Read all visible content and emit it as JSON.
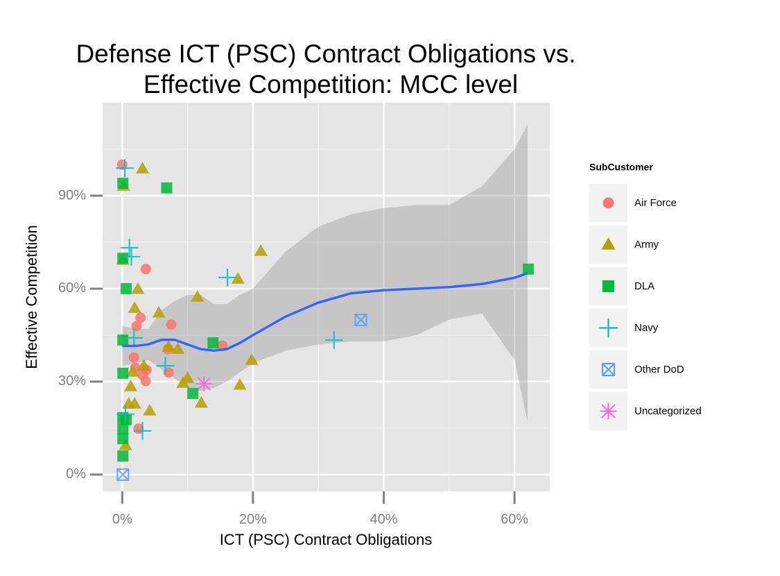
{
  "chart_data": {
    "type": "scatter",
    "title": [
      "Defense ICT (PSC) Contract Obligations vs.",
      "Effective Competition: MCC level"
    ],
    "x_label": "ICT (PSC) Contract Obligations",
    "y_label": "Effective Competition",
    "xlim": [
      -3,
      65.4
    ],
    "ylim": [
      -5.4,
      120
    ],
    "xticks": [
      {
        "value": 0,
        "label": "0%"
      },
      {
        "value": 20,
        "label": "20%"
      },
      {
        "value": 40,
        "label": "40%"
      },
      {
        "value": 60,
        "label": "60%"
      }
    ],
    "yticks": [
      {
        "value": 0,
        "label": "0%"
      },
      {
        "value": 30,
        "label": "30%"
      },
      {
        "value": 60,
        "label": "60%"
      },
      {
        "value": 90,
        "label": "90%"
      }
    ],
    "xminor": [
      10,
      30,
      50
    ],
    "yminor": [
      15,
      45,
      75,
      105
    ],
    "grid": true,
    "legend_title": "SubCustomer",
    "legend": "right",
    "series": [
      {
        "name": "Air Force",
        "color": "#F8766D",
        "shape": "circle",
        "x": [
          0,
          3.6,
          2.8,
          2.2,
          7.5,
          1.8,
          7.0,
          3.7,
          7.1,
          3.1,
          3.6,
          2.5,
          15.3,
          2.0
        ],
        "values": [
          100,
          66.3,
          50.6,
          47.9,
          48.4,
          37.8,
          40.5,
          33.8,
          32.9,
          32.2,
          30.2,
          14.8,
          41.6,
          34.5
        ]
      },
      {
        "name": "Army",
        "color": "#B79F00",
        "shape": "triangle",
        "x": [
          3.1,
          0.2,
          0.1,
          21.2,
          17.7,
          2.4,
          11.5,
          1.9,
          5.6,
          7.1,
          8.5,
          19.8,
          3.3,
          1.6,
          10.0,
          9.3,
          18.0,
          1.3,
          1.0,
          1.9,
          12.1,
          4.2,
          0.5
        ],
        "values": [
          98.7,
          93.1,
          69.2,
          72.1,
          63.1,
          59.8,
          57.3,
          53.7,
          52.2,
          41.2,
          40.5,
          36.9,
          35.1,
          33.1,
          31.1,
          29.5,
          28.9,
          28.4,
          22.8,
          22.8,
          23.1,
          20.6,
          9.4
        ]
      },
      {
        "name": "DLA",
        "color": "#00BA38",
        "shape": "square",
        "x": [
          0.1,
          6.8,
          0.1,
          0.6,
          0.1,
          13.9,
          0.1,
          10.8,
          0.1,
          0.6,
          0.1,
          0.1,
          0.1,
          62.1
        ],
        "values": [
          94.0,
          92.5,
          69.8,
          60.0,
          43.4,
          42.5,
          32.7,
          26.2,
          18.4,
          17.7,
          14.8,
          11.6,
          6.0,
          66.3
        ]
      },
      {
        "name": "Navy",
        "color": "#00BFC4",
        "shape": "plus",
        "x": [
          0.4,
          1.1,
          1.4,
          16.1,
          1.8,
          6.6,
          32.4,
          0.5,
          3.1
        ],
        "values": [
          98.9,
          73.2,
          70.3,
          63.6,
          44.1,
          35.1,
          43.4,
          19.5,
          14.1
        ]
      },
      {
        "name": "Other DoD",
        "color": "#619CFF",
        "shape": "boxx",
        "x": [
          0.1,
          36.5
        ],
        "values": [
          0,
          49.9
        ]
      },
      {
        "name": "Uncategorized",
        "color": "#F564E3",
        "shape": "asterisk",
        "x": [
          12.5
        ],
        "values": [
          29.3
        ]
      }
    ],
    "smooth": {
      "color": "#3366FF",
      "x": [
        0,
        2,
        4,
        6,
        8,
        10,
        12,
        14,
        16,
        18,
        20,
        25,
        30,
        35,
        40,
        45,
        50,
        55,
        60,
        62
      ],
      "y": [
        41.5,
        41.5,
        42,
        43.5,
        43.5,
        42,
        40.5,
        40,
        40.5,
        42.5,
        45,
        51,
        55.5,
        58.5,
        59.5,
        60,
        60.5,
        61.5,
        63.5,
        65
      ],
      "lower": [
        35,
        36,
        37,
        34,
        31,
        28,
        27,
        28,
        30,
        33,
        36,
        40,
        42,
        43,
        43,
        45,
        50,
        52,
        37,
        17
      ],
      "upper": [
        48,
        47,
        47,
        53,
        56,
        58,
        58,
        55,
        55,
        58,
        60,
        72,
        80,
        84,
        86,
        87,
        87,
        93,
        105,
        113
      ]
    }
  }
}
